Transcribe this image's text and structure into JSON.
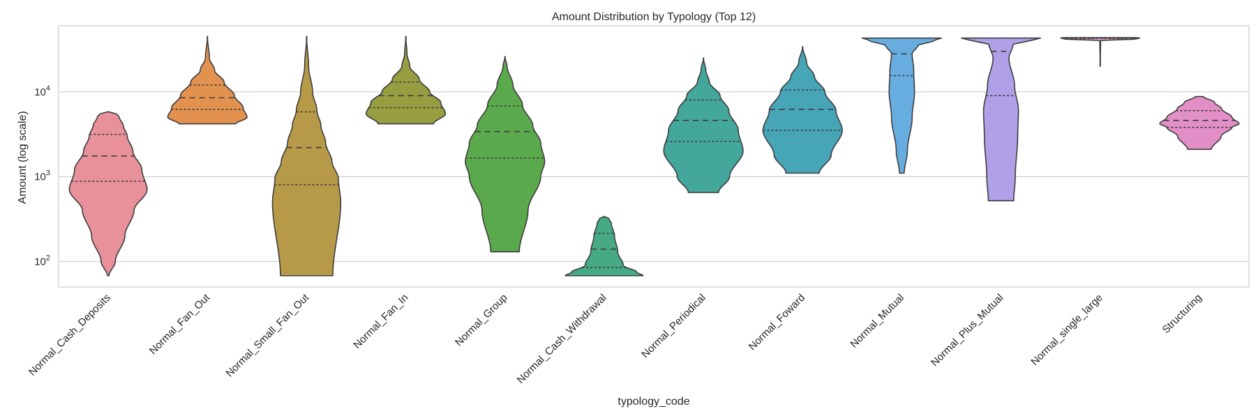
{
  "chart_data": {
    "type": "violin",
    "title": "Amount Distribution by Typology (Top 12)",
    "xlabel": "typology_code",
    "ylabel": "Amount (log scale)",
    "y_scale": "log",
    "ylim": [
      50,
      60000
    ],
    "y_ticks": [
      {
        "value": 100,
        "base": "10",
        "exp": "2"
      },
      {
        "value": 1000,
        "base": "10",
        "exp": "3"
      },
      {
        "value": 10000,
        "base": "10",
        "exp": "4"
      }
    ],
    "grid": "horizontal",
    "inner": "quartile",
    "categories": [
      {
        "name": "Normal_Cash_Deposits",
        "color": "#e8919b",
        "min": 68,
        "max": 5800,
        "q1": 880,
        "median": 1750,
        "q3": 3150,
        "profile": [
          [
            68,
            0.02
          ],
          [
            100,
            0.18
          ],
          [
            200,
            0.42
          ],
          [
            400,
            0.65
          ],
          [
            700,
            0.98
          ],
          [
            1200,
            0.85
          ],
          [
            2000,
            0.62
          ],
          [
            3000,
            0.48
          ],
          [
            4000,
            0.38
          ],
          [
            5000,
            0.28
          ],
          [
            5600,
            0.2
          ],
          [
            5800,
            0.02
          ]
        ]
      },
      {
        "name": "Normal_Fan_Out",
        "color": "#e2914f",
        "min": 4200,
        "max": 45000,
        "q1": 6200,
        "median": 8500,
        "q3": 12000,
        "profile": [
          [
            4200,
            0.72
          ],
          [
            5000,
            1.0
          ],
          [
            6500,
            0.9
          ],
          [
            9000,
            0.68
          ],
          [
            13000,
            0.42
          ],
          [
            18000,
            0.18
          ],
          [
            25000,
            0.05
          ],
          [
            45000,
            0.0
          ]
        ]
      },
      {
        "name": "Normal_Small_Fan_Out",
        "color": "#b79a48",
        "min": 68,
        "max": 45000,
        "q1": 800,
        "median": 2200,
        "q3": 5800,
        "profile": [
          [
            68,
            0.66
          ],
          [
            500,
            0.86
          ],
          [
            950,
            0.8
          ],
          [
            1500,
            0.64
          ],
          [
            2500,
            0.48
          ],
          [
            4000,
            0.36
          ],
          [
            6000,
            0.26
          ],
          [
            10000,
            0.15
          ],
          [
            20000,
            0.05
          ],
          [
            45000,
            0.0
          ]
        ]
      },
      {
        "name": "Normal_Fan_In",
        "color": "#979e41",
        "min": 4200,
        "max": 45000,
        "q1": 6500,
        "median": 9000,
        "q3": 13000,
        "profile": [
          [
            4200,
            0.7
          ],
          [
            5500,
            1.0
          ],
          [
            7500,
            0.88
          ],
          [
            10000,
            0.6
          ],
          [
            14000,
            0.34
          ],
          [
            20000,
            0.1
          ],
          [
            28000,
            0.03
          ],
          [
            45000,
            0.0
          ]
        ]
      },
      {
        "name": "Normal_Group",
        "color": "#5ba94d",
        "min": 130,
        "max": 26000,
        "q1": 1650,
        "median": 3400,
        "q3": 6800,
        "profile": [
          [
            130,
            0.36
          ],
          [
            400,
            0.58
          ],
          [
            1000,
            0.9
          ],
          [
            1500,
            1.0
          ],
          [
            2500,
            0.9
          ],
          [
            4000,
            0.7
          ],
          [
            7000,
            0.44
          ],
          [
            12000,
            0.2
          ],
          [
            20000,
            0.05
          ],
          [
            26000,
            0.0
          ]
        ]
      },
      {
        "name": "Normal_Cash_Withdrawal",
        "color": "#46ab85",
        "min": 68,
        "max": 340,
        "q1": 85,
        "median": 140,
        "q3": 215,
        "profile": [
          [
            68,
            0.98
          ],
          [
            75,
            0.82
          ],
          [
            90,
            0.48
          ],
          [
            130,
            0.34
          ],
          [
            200,
            0.26
          ],
          [
            280,
            0.18
          ],
          [
            320,
            0.12
          ],
          [
            340,
            0.0
          ]
        ]
      },
      {
        "name": "Normal_Periodical",
        "color": "#43a79c",
        "min": 650,
        "max": 25000,
        "q1": 2600,
        "median": 4600,
        "q3": 8000,
        "profile": [
          [
            650,
            0.38
          ],
          [
            1000,
            0.66
          ],
          [
            2000,
            1.0
          ],
          [
            3500,
            0.88
          ],
          [
            6000,
            0.64
          ],
          [
            9000,
            0.42
          ],
          [
            13000,
            0.15
          ],
          [
            18000,
            0.06
          ],
          [
            25000,
            0.0
          ]
        ]
      },
      {
        "name": "Normal_Foward",
        "color": "#47a5b8",
        "min": 1100,
        "max": 34000,
        "q1": 3500,
        "median": 6200,
        "q3": 10500,
        "profile": [
          [
            1100,
            0.42
          ],
          [
            1800,
            0.72
          ],
          [
            3500,
            1.0
          ],
          [
            6000,
            0.84
          ],
          [
            10000,
            0.56
          ],
          [
            15000,
            0.3
          ],
          [
            22000,
            0.1
          ],
          [
            34000,
            0.0
          ]
        ]
      },
      {
        "name": "Normal_Mutual",
        "color": "#67ade0",
        "min": 1100,
        "max": 43000,
        "q1": 15500,
        "median": 28000,
        "q3": 43000,
        "profile": [
          [
            1100,
            0.06
          ],
          [
            2000,
            0.14
          ],
          [
            5000,
            0.26
          ],
          [
            10000,
            0.32
          ],
          [
            18000,
            0.3
          ],
          [
            28000,
            0.26
          ],
          [
            35000,
            0.4
          ],
          [
            40000,
            0.8
          ],
          [
            43000,
            1.0
          ]
        ]
      },
      {
        "name": "Normal_Plus_Mutual",
        "color": "#b0a0e8",
        "min": 520,
        "max": 43000,
        "q1": 9000,
        "median": 30000,
        "q3": 43000,
        "profile": [
          [
            520,
            0.32
          ],
          [
            1000,
            0.36
          ],
          [
            3000,
            0.42
          ],
          [
            6000,
            0.44
          ],
          [
            12000,
            0.34
          ],
          [
            25000,
            0.2
          ],
          [
            36000,
            0.3
          ],
          [
            41000,
            0.8
          ],
          [
            43000,
            1.0
          ]
        ]
      },
      {
        "name": "Normal_single_large",
        "color": "#e2a0d6",
        "min": 20000,
        "max": 43500,
        "q1": 42500,
        "median": 43000,
        "q3": 43300,
        "profile": [
          [
            20000,
            0.0
          ],
          [
            40000,
            0.01
          ],
          [
            42000,
            0.9
          ],
          [
            43000,
            1.0
          ],
          [
            43500,
            0.9
          ]
        ]
      },
      {
        "name": "Structuring",
        "color": "#e18fc6",
        "min": 2100,
        "max": 8800,
        "q1": 3800,
        "median": 4600,
        "q3": 6000,
        "profile": [
          [
            2100,
            0.3
          ],
          [
            3000,
            0.55
          ],
          [
            3800,
            0.82
          ],
          [
            4200,
            1.0
          ],
          [
            5000,
            0.82
          ],
          [
            6300,
            0.56
          ],
          [
            7500,
            0.38
          ],
          [
            8800,
            0.1
          ]
        ]
      }
    ]
  }
}
